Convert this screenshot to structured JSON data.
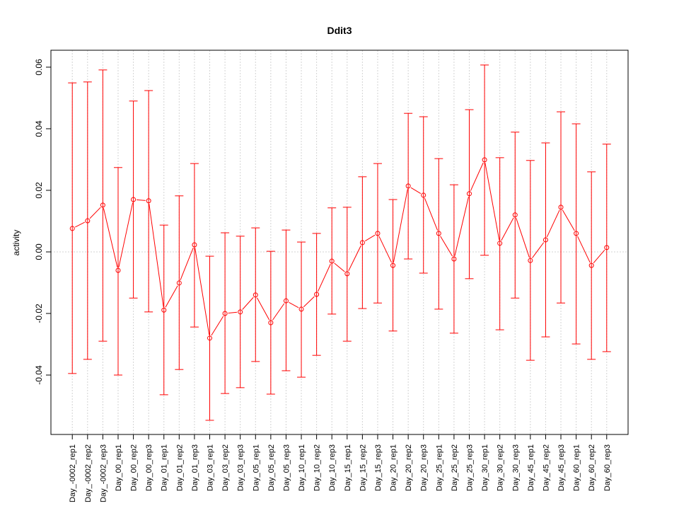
{
  "chart_data": {
    "type": "line",
    "title": "Ddit3",
    "xlabel": "",
    "ylabel": "activity",
    "ylim": [
      -0.0593,
      0.0655
    ],
    "xlim": [
      -0.4,
      37.4
    ],
    "grid": true,
    "yticks": [
      -0.04,
      -0.02,
      0.0,
      0.02,
      0.04,
      0.06
    ],
    "ytick_labels": [
      "-0.04",
      "-0.02",
      "0.00",
      "0.02",
      "0.04",
      "0.06"
    ],
    "color": "#ff0000",
    "categories": [
      "Day_-0002_rep1",
      "Day_-0002_rep2",
      "Day_-0002_rep3",
      "Day_00_rep1",
      "Day_00_rep2",
      "Day_00_rep3",
      "Day_01_rep1",
      "Day_01_rep2",
      "Day_01_rep3",
      "Day_03_rep1",
      "Day_03_rep2",
      "Day_03_rep3",
      "Day_05_rep1",
      "Day_05_rep2",
      "Day_05_rep3",
      "Day_10_rep1",
      "Day_10_rep2",
      "Day_10_rep3",
      "Day_15_rep1",
      "Day_15_rep2",
      "Day_15_rep3",
      "Day_20_rep1",
      "Day_20_rep2",
      "Day_20_rep3",
      "Day_25_rep1",
      "Day_25_rep2",
      "Day_25_rep3",
      "Day_30_rep1",
      "Day_30_rep2",
      "Day_30_rep3",
      "Day_45_rep1",
      "Day_45_rep2",
      "Day_45_rep3",
      "Day_60_rep1",
      "Day_60_rep2",
      "Day_60_rep3"
    ],
    "values": [
      0.0076,
      0.0101,
      0.0152,
      -0.006,
      0.017,
      0.0166,
      -0.0189,
      -0.0101,
      0.0023,
      -0.028,
      -0.02,
      -0.0195,
      -0.014,
      -0.023,
      -0.0159,
      -0.0186,
      -0.0138,
      -0.003,
      -0.0071,
      0.003,
      0.006,
      -0.0044,
      0.0214,
      0.0184,
      0.006,
      -0.0023,
      0.0189,
      0.0299,
      0.0028,
      0.012,
      -0.0028,
      0.0039,
      0.0145,
      0.006,
      -0.0044,
      0.0014
    ],
    "upper": [
      0.0549,
      0.0552,
      0.0591,
      0.0274,
      0.049,
      0.0524,
      0.0087,
      0.0182,
      0.0287,
      -0.0014,
      0.0062,
      0.0051,
      0.0078,
      0.0002,
      0.0071,
      0.0032,
      0.006,
      0.0143,
      0.0145,
      0.0244,
      0.0287,
      0.017,
      0.045,
      0.0439,
      0.0303,
      0.0218,
      0.0462,
      0.0607,
      0.0306,
      0.0389,
      0.0297,
      0.0354,
      0.0455,
      0.0416,
      0.026,
      0.035
    ],
    "lower": [
      -0.0395,
      -0.0349,
      -0.029,
      -0.04,
      -0.015,
      -0.0195,
      -0.0464,
      -0.0382,
      -0.0244,
      -0.0547,
      -0.046,
      -0.0441,
      -0.0356,
      -0.0462,
      -0.0386,
      -0.0407,
      -0.0336,
      -0.0202,
      -0.029,
      -0.0184,
      -0.0166,
      -0.0257,
      -0.0023,
      -0.0069,
      -0.0186,
      -0.0264,
      -0.0087,
      -0.0011,
      -0.0253,
      -0.015,
      -0.0352,
      -0.0276,
      -0.0166,
      -0.0299,
      -0.0349,
      -0.0324
    ]
  }
}
